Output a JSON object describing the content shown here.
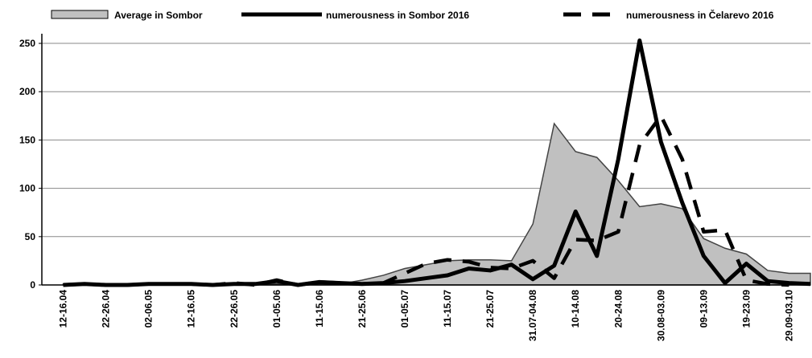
{
  "chart_data": {
    "type": "line",
    "categories": [
      "12-16.04",
      null,
      "22-26.04",
      null,
      "02-06.05",
      null,
      "12-16.05",
      null,
      "22-26.05",
      null,
      "01-05.06",
      null,
      "11-15.06",
      null,
      "21-25.06",
      null,
      "01-05.07",
      null,
      "11-15.07",
      null,
      "21-25.07",
      null,
      "31.07-04.08",
      null,
      "10-14.08",
      null,
      "20-24.08",
      null,
      "30.08-03.09",
      null,
      "09-13.09",
      null,
      "19-23.09",
      null,
      "29.09-03.10",
      null
    ],
    "series": [
      {
        "name": "Average in Sombor",
        "color": "#c0c0c0",
        "style": "area",
        "values": [
          1,
          1,
          1,
          1,
          1,
          1,
          1,
          1,
          1,
          1,
          1,
          1,
          1,
          1,
          5,
          10,
          17,
          21,
          25,
          26,
          26,
          25,
          63,
          167,
          138,
          132,
          108,
          81,
          84,
          79,
          48,
          38,
          32,
          15,
          12,
          12
        ]
      },
      {
        "name": "numerousness in Sombor 2016",
        "color": "#000000",
        "style": "solid",
        "values": [
          0,
          1,
          0,
          0,
          1,
          1,
          1,
          0,
          1,
          1,
          4,
          0,
          3,
          2,
          1,
          2,
          4,
          7,
          10,
          17,
          15,
          21,
          6,
          20,
          76,
          30,
          130,
          253,
          148,
          85,
          30,
          2,
          22,
          4,
          2,
          1
        ]
      },
      {
        "name": "numerousness in Čelarevo 2016",
        "color": "#000000",
        "style": "dashed",
        "values": [
          0,
          1,
          0,
          0,
          1,
          1,
          1,
          0,
          2,
          0,
          5,
          0,
          3,
          2,
          1,
          2,
          12,
          22,
          26,
          24,
          18,
          17,
          25,
          7,
          47,
          46,
          55,
          145,
          175,
          130,
          55,
          57,
          5,
          1,
          0,
          null
        ]
      }
    ],
    "ylim": [
      0,
      260
    ],
    "yticks": [
      0,
      50,
      100,
      150,
      200,
      250
    ],
    "grid": true
  }
}
